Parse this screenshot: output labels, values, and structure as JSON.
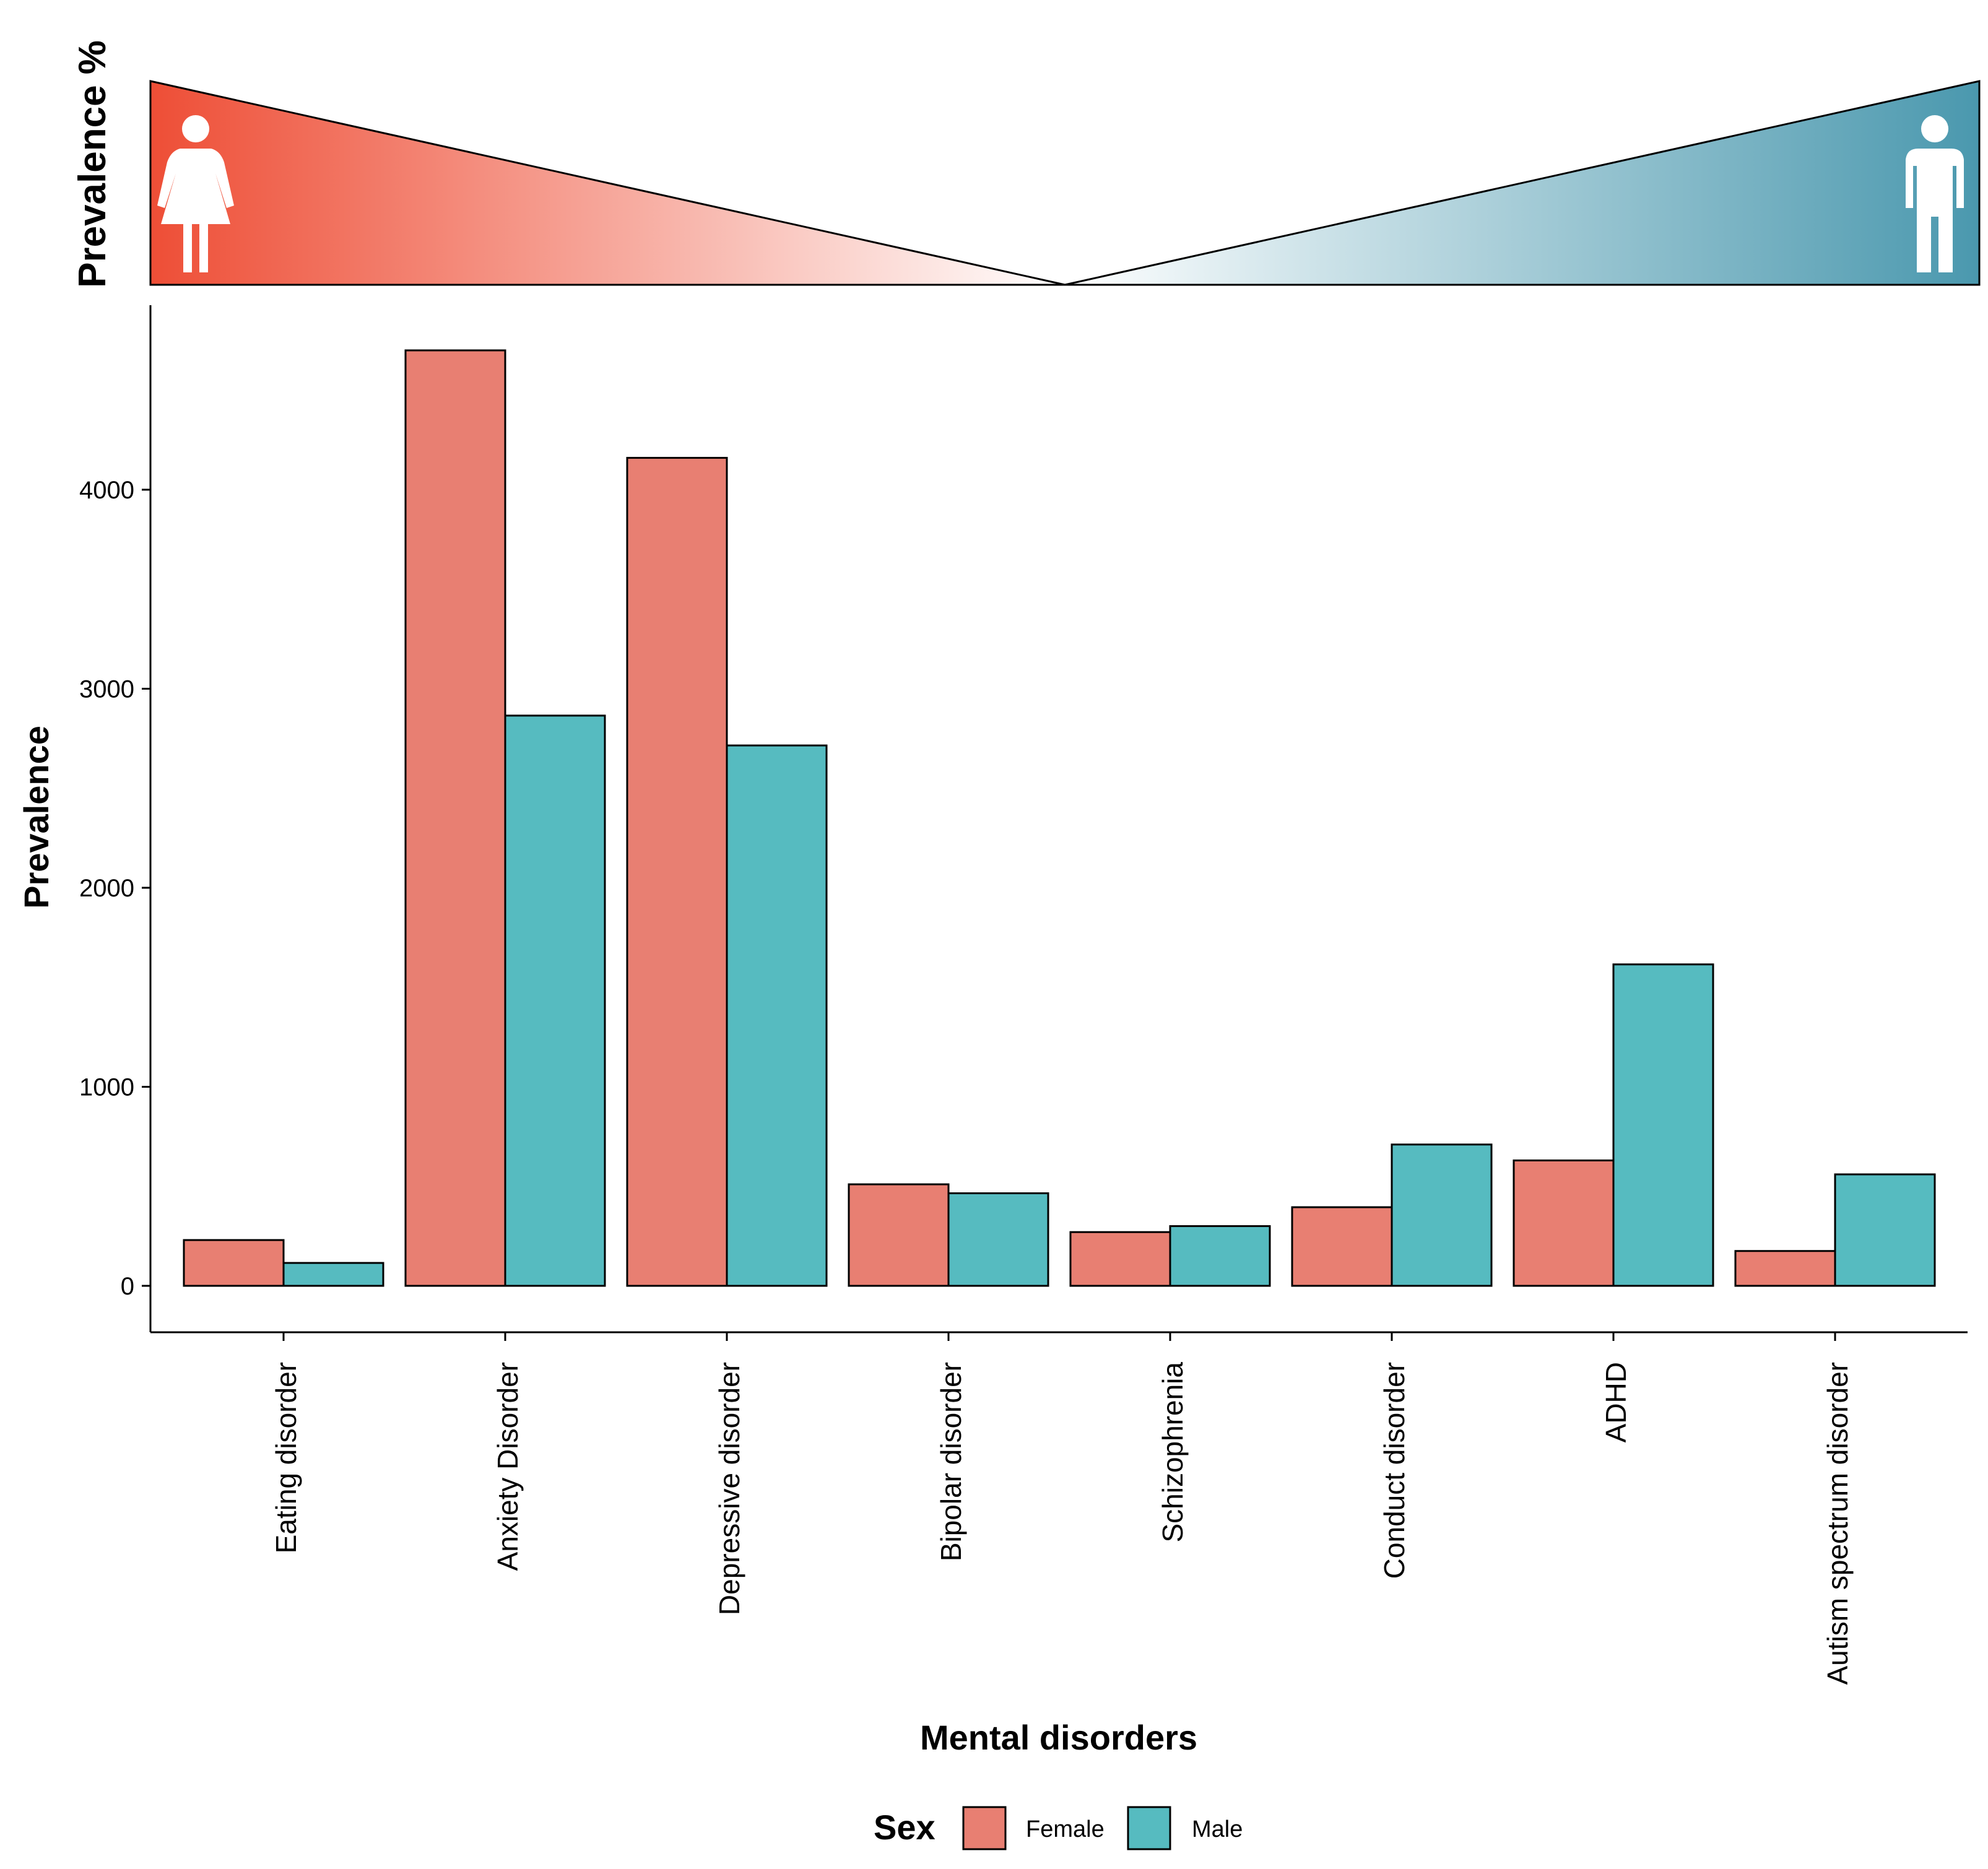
{
  "header": {
    "label": "Prevalence %",
    "female_color": "#EE4E36",
    "male_color": "#4A98AE",
    "female_icon": "female-person-icon",
    "male_icon": "male-person-icon"
  },
  "chart_data": {
    "type": "bar",
    "title": "",
    "xlabel": "Mental disorders",
    "ylabel": "Prevalence",
    "categories": [
      "Eating disorder",
      "Anxiety Disorder",
      "Depressive disorder",
      "Bipolar disorder",
      "Schizophrenia",
      "Conduct disorder",
      "ADHD",
      "Autism spectrum disorder"
    ],
    "series": [
      {
        "name": "Female",
        "color": "#E87F72",
        "values": [
          230,
          4700,
          4160,
          510,
          270,
          395,
          630,
          175
        ]
      },
      {
        "name": "Male",
        "color": "#56BBC0",
        "values": [
          115,
          2865,
          2715,
          465,
          300,
          710,
          1615,
          560
        ]
      }
    ],
    "yticks": [
      0,
      1000,
      2000,
      3000,
      4000
    ],
    "ylim": [
      -230,
      4940
    ],
    "grid": false,
    "legend": {
      "title": "Sex",
      "position": "bottom"
    }
  }
}
